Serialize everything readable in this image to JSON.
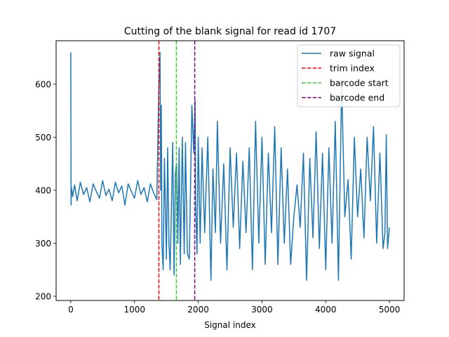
{
  "chart_data": {
    "type": "line",
    "title": "Cutting of the blank signal for read id 1707",
    "xlabel": "Signal index",
    "ylabel": "",
    "xlim": [
      -230,
      5230
    ],
    "ylim": [
      192,
      682
    ],
    "xticks": [
      0,
      1000,
      2000,
      3000,
      4000,
      5000
    ],
    "yticks": [
      200,
      300,
      400,
      500,
      600
    ],
    "grid": false,
    "legend_position": "top-right",
    "series": [
      {
        "name": "raw signal",
        "style": "solid",
        "color": "#1f77b4",
        "x": [
          0,
          5,
          10,
          30,
          60,
          100,
          150,
          200,
          250,
          300,
          350,
          400,
          450,
          500,
          550,
          600,
          650,
          700,
          750,
          800,
          850,
          900,
          950,
          1000,
          1050,
          1100,
          1150,
          1200,
          1250,
          1300,
          1350,
          1380,
          1400,
          1410,
          1420,
          1430,
          1450,
          1470,
          1500,
          1520,
          1540,
          1560,
          1600,
          1620,
          1640,
          1660,
          1680,
          1700,
          1720,
          1750,
          1780,
          1800,
          1830,
          1860,
          1900,
          1930,
          1950,
          1960,
          1980,
          2000,
          2030,
          2060,
          2100,
          2150,
          2200,
          2230,
          2270,
          2300,
          2350,
          2400,
          2450,
          2500,
          2550,
          2600,
          2650,
          2700,
          2750,
          2800,
          2850,
          2900,
          2950,
          3000,
          3050,
          3100,
          3150,
          3200,
          3250,
          3300,
          3350,
          3400,
          3450,
          3500,
          3550,
          3600,
          3650,
          3700,
          3750,
          3800,
          3850,
          3900,
          3950,
          4000,
          4050,
          4100,
          4150,
          4200,
          4250,
          4300,
          4350,
          4400,
          4450,
          4500,
          4550,
          4600,
          4650,
          4700,
          4750,
          4800,
          4850,
          4900,
          4930,
          4950,
          4970,
          5000
        ],
        "values": [
          660,
          372,
          405,
          388,
          410,
          380,
          415,
          392,
          405,
          378,
          412,
          398,
          385,
          418,
          390,
          402,
          380,
          415,
          395,
          408,
          372,
          412,
          398,
          385,
          418,
          392,
          405,
          378,
          412,
          395,
          382,
          590,
          660,
          400,
          560,
          300,
          250,
          460,
          270,
          480,
          300,
          250,
          490,
          240,
          430,
          450,
          300,
          480,
          260,
          500,
          280,
          490,
          280,
          270,
          560,
          470,
          570,
          380,
          280,
          500,
          300,
          480,
          320,
          500,
          230,
          440,
          320,
          530,
          300,
          450,
          250,
          480,
          330,
          470,
          290,
          455,
          320,
          480,
          250,
          530,
          300,
          500,
          260,
          470,
          320,
          520,
          260,
          480,
          300,
          440,
          260,
          350,
          410,
          330,
          470,
          230,
          460,
          310,
          510,
          290,
          470,
          250,
          480,
          300,
          530,
          230,
          600,
          350,
          420,
          270,
          500,
          350,
          440,
          310,
          500,
          380,
          520,
          300,
          470,
          290,
          320,
          505,
          290,
          330
        ]
      },
      {
        "name": "trim index",
        "style": "dashed",
        "color": "#ff0000",
        "x_value": 1382
      },
      {
        "name": "barcode start",
        "style": "dashed",
        "color": "#32cd32",
        "x_value": 1657
      },
      {
        "name": "barcode end",
        "style": "dashed",
        "color": "#800080",
        "x_value": 1945
      }
    ]
  }
}
